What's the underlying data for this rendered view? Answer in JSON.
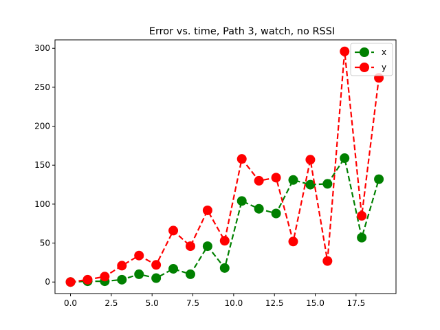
{
  "chart_data": {
    "type": "line",
    "title": "Error vs. time, Path 3, watch, no RSSI",
    "xlabel": "",
    "ylabel": "",
    "xlim": [
      -0.95,
      19.95
    ],
    "ylim": [
      -14.8,
      310.8
    ],
    "x_ticks": [
      "0.0",
      "2.5",
      "5.0",
      "7.5",
      "10.0",
      "12.5",
      "15.0",
      "17.5"
    ],
    "y_ticks": [
      "0",
      "50",
      "100",
      "150",
      "200",
      "250",
      "300"
    ],
    "x_tick_values": [
      0,
      2.5,
      5,
      7.5,
      10,
      12.5,
      15,
      17.5
    ],
    "y_tick_values": [
      0,
      50,
      100,
      150,
      200,
      250,
      300
    ],
    "grid": false,
    "legend_position": "top-right",
    "x": [
      0.0,
      1.05,
      2.1,
      3.15,
      4.2,
      5.25,
      6.3,
      7.35,
      8.4,
      9.45,
      10.5,
      11.55,
      12.6,
      13.65,
      14.7,
      15.75,
      16.8,
      17.85,
      18.9
    ],
    "series": [
      {
        "name": "x",
        "color": "#008000",
        "values": [
          0,
          1,
          1,
          3,
          10,
          5,
          17,
          10,
          46,
          18,
          104,
          94,
          88,
          131,
          125,
          126,
          159,
          57,
          132
        ]
      },
      {
        "name": "y",
        "color": "#ff0000",
        "values": [
          0,
          3,
          7,
          21,
          34,
          22,
          66,
          46,
          92,
          53,
          158,
          130,
          134,
          52,
          157,
          27,
          296,
          85,
          262
        ]
      }
    ]
  }
}
